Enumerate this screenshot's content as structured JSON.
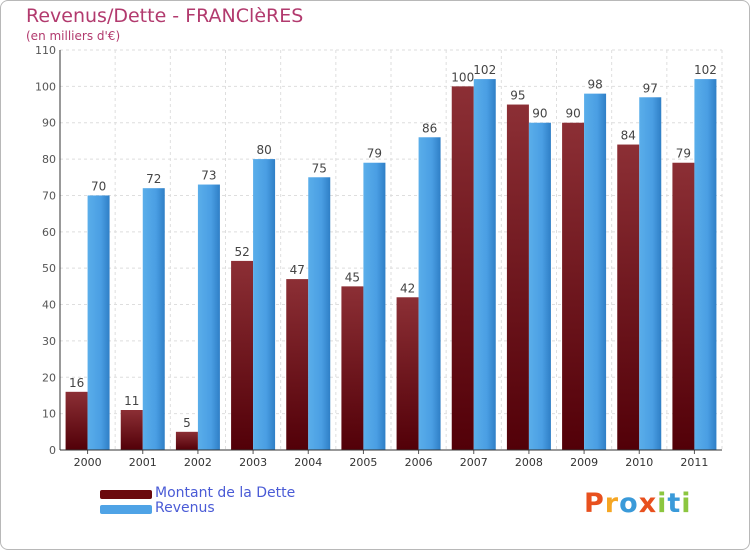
{
  "chart_data": {
    "type": "bar",
    "title": "Revenus/Dette - FRANClèRES",
    "subtitle": "(en milliers d'€)",
    "categories": [
      "2000",
      "2001",
      "2002",
      "2003",
      "2004",
      "2005",
      "2006",
      "2007",
      "2008",
      "2009",
      "2010",
      "2011"
    ],
    "series": [
      {
        "name": "Montant de la Dette",
        "values": [
          16,
          11,
          5,
          52,
          47,
          45,
          42,
          100,
          95,
          90,
          84,
          79
        ],
        "color": "#7a1e1e"
      },
      {
        "name": "Revenus",
        "values": [
          70,
          72,
          73,
          80,
          75,
          79,
          86,
          102,
          90,
          98,
          97,
          102
        ],
        "color": "#4fa3e6"
      }
    ],
    "ylim": [
      0,
      110
    ],
    "yticks": [
      0,
      10,
      20,
      30,
      40,
      50,
      60,
      70,
      80,
      90,
      100,
      110
    ],
    "grid": true,
    "legend_position": "bottom-left"
  },
  "logo": {
    "text": "Proxiti",
    "letters": [
      {
        "ch": "P",
        "color": "#e8501e"
      },
      {
        "ch": "r",
        "color": "#f5a623"
      },
      {
        "ch": "o",
        "color": "#3a9ad9"
      },
      {
        "ch": "x",
        "color": "#e8501e"
      },
      {
        "ch": "i",
        "color": "#8cc63f"
      },
      {
        "ch": "t",
        "color": "#3a9ad9"
      },
      {
        "ch": "i",
        "color": "#8cc63f"
      }
    ]
  }
}
